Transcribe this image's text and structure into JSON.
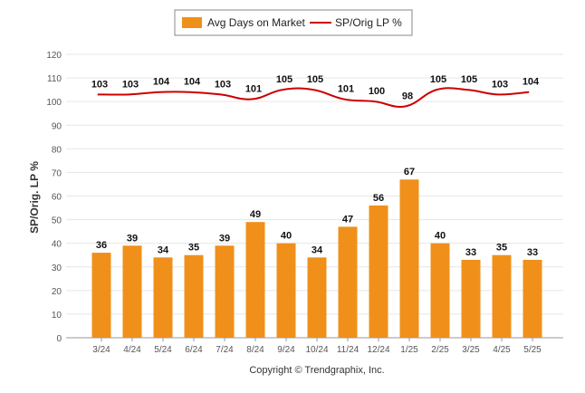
{
  "chart_data": {
    "type": "bar",
    "categories": [
      "3/24",
      "4/24",
      "5/24",
      "6/24",
      "7/24",
      "8/24",
      "9/24",
      "10/24",
      "11/24",
      "12/24",
      "1/25",
      "2/25",
      "3/25",
      "4/25",
      "5/25"
    ],
    "series": [
      {
        "name": "Avg Days on Market",
        "type": "bar",
        "color": "#F0901A",
        "values": [
          36,
          39,
          34,
          35,
          39,
          49,
          40,
          34,
          47,
          56,
          67,
          40,
          33,
          35,
          33
        ]
      },
      {
        "name": "SP/Orig LP %",
        "type": "line",
        "color": "#CC0000",
        "values": [
          103,
          103,
          104,
          104,
          103,
          101,
          105,
          105,
          101,
          100,
          98,
          105,
          105,
          103,
          104
        ]
      }
    ],
    "ylabel": "SP/Orig. LP %",
    "ylim": [
      0,
      120
    ],
    "yticks": [
      0,
      10,
      20,
      30,
      40,
      50,
      60,
      70,
      80,
      90,
      100,
      110,
      120
    ],
    "grid": true,
    "legend_position": "top-center"
  },
  "legend": {
    "bar_label": "Avg Days on Market",
    "line_label": "SP/Orig LP %"
  },
  "footer": {
    "copyright": "Copyright © Trendgraphix, Inc."
  }
}
